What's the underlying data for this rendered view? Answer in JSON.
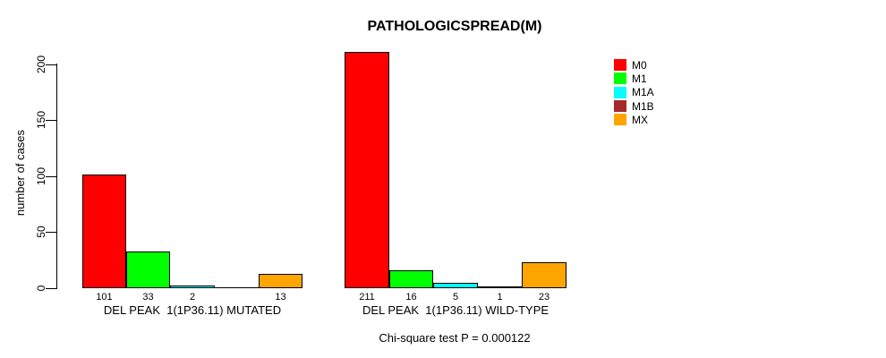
{
  "chart_data": {
    "type": "bar",
    "title": "PATHOLOGICSPREAD(M)",
    "ylabel": "number of cases",
    "xlabel": "",
    "ylim": [
      0,
      200
    ],
    "yticks": [
      0,
      50,
      100,
      150,
      200
    ],
    "grid": false,
    "legend_position": "right",
    "categories": [
      "M0",
      "M1",
      "M1A",
      "M1B",
      "MX"
    ],
    "legend": [
      {
        "label": "M0",
        "color": "#FF0000"
      },
      {
        "label": "M1",
        "color": "#00FF00"
      },
      {
        "label": "M1A",
        "color": "#00FFFF"
      },
      {
        "label": "M1B",
        "color": "#A52A2A"
      },
      {
        "label": "MX",
        "color": "#FFA500"
      }
    ],
    "groups": [
      {
        "label": "DEL PEAK  1(1P36.11) MUTATED",
        "values": [
          101,
          33,
          2,
          0,
          13
        ],
        "value_labels": [
          "101",
          "33",
          "2",
          "",
          "13"
        ]
      },
      {
        "label": "DEL PEAK  1(1P36.11) WILD-TYPE",
        "values": [
          211,
          16,
          5,
          1,
          23
        ],
        "value_labels": [
          "211",
          "16",
          "5",
          "1",
          "23"
        ]
      }
    ],
    "annotation": "Chi-square test P = 0.000122"
  }
}
